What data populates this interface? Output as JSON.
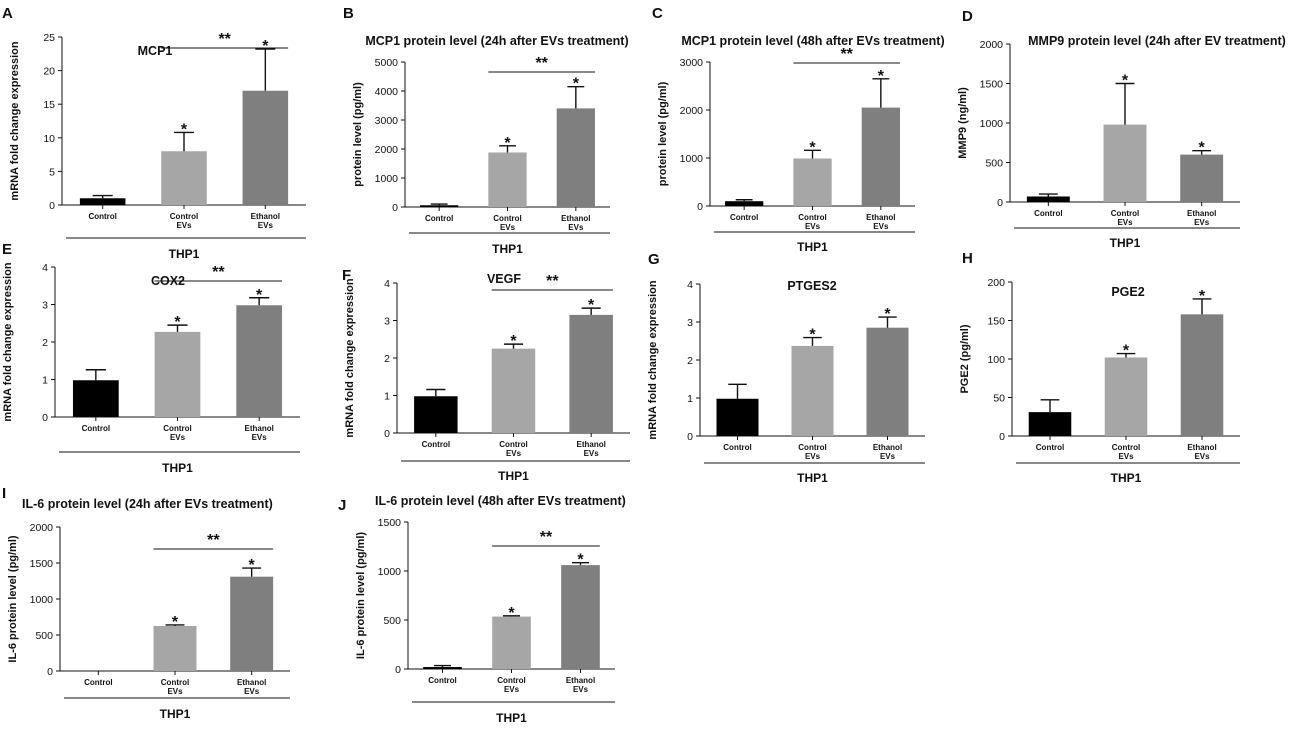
{
  "figure_title": "",
  "chart_data": [
    {
      "panel": "A",
      "type": "bar",
      "title": "MCP1",
      "ylabel": "mRNA fold change expression",
      "ylim": [
        0,
        25
      ],
      "yticks": [
        0,
        5,
        10,
        15,
        20,
        25
      ],
      "categories": [
        "Control",
        "Control EVs",
        "Ethanol EVs"
      ],
      "values": [
        1.0,
        8.0,
        17.0
      ],
      "errors": [
        0.4,
        2.8,
        6.2
      ],
      "stars": [
        "",
        "*",
        "*"
      ],
      "bracket_label": "**",
      "group_label": "THP1",
      "colors": [
        "#000000",
        "#a6a6a6",
        "#7f7f7f"
      ]
    },
    {
      "panel": "B",
      "type": "bar",
      "title": "MCP1 protein level (24h after EVs treatment)",
      "ylabel": "protein level (pg/ml)",
      "ylim": [
        0,
        5000
      ],
      "yticks": [
        0,
        1000,
        2000,
        3000,
        4000,
        5000
      ],
      "categories": [
        "Control",
        "Control EVs",
        "Ethanol EVs"
      ],
      "values": [
        60,
        1880,
        3400
      ],
      "errors": [
        40,
        230,
        750
      ],
      "stars": [
        "",
        "*",
        "*"
      ],
      "bracket_label": "**",
      "group_label": "THP1",
      "colors": [
        "#000000",
        "#a6a6a6",
        "#7f7f7f"
      ]
    },
    {
      "panel": "C",
      "type": "bar",
      "title": "MCP1 protein level (48h after EVs treatment)",
      "ylabel": "protein level (pg/ml)",
      "ylim": [
        0,
        3000
      ],
      "yticks": [
        0,
        1000,
        2000,
        3000
      ],
      "categories": [
        "Control",
        "Control EVs",
        "Ethanol EVs"
      ],
      "values": [
        100,
        990,
        2050
      ],
      "errors": [
        30,
        170,
        600
      ],
      "stars": [
        "",
        "*",
        "*"
      ],
      "bracket_label": "**",
      "group_label": "THP1",
      "colors": [
        "#000000",
        "#a6a6a6",
        "#7f7f7f"
      ]
    },
    {
      "panel": "D",
      "type": "bar",
      "title": "MMP9 protein level (24h after EV treatment)",
      "ylabel": "MMP9 (ng/ml)",
      "ylim": [
        0,
        2000
      ],
      "yticks": [
        0,
        500,
        1000,
        1500,
        2000
      ],
      "categories": [
        "Control",
        "Control EVs",
        "Ethanol EVs"
      ],
      "values": [
        70,
        980,
        600
      ],
      "errors": [
        30,
        520,
        50
      ],
      "stars": [
        "",
        "*",
        "*"
      ],
      "bracket_label": "",
      "group_label": "THP1",
      "colors": [
        "#000000",
        "#a6a6a6",
        "#7f7f7f"
      ]
    },
    {
      "panel": "E",
      "type": "bar",
      "title": "COX2",
      "ylabel": "mRNA fold change expression",
      "ylim": [
        0,
        4
      ],
      "yticks": [
        0,
        1,
        2,
        3,
        4
      ],
      "categories": [
        "Control",
        "Control EVs",
        "Ethanol EVs"
      ],
      "values": [
        0.98,
        2.27,
        2.98
      ],
      "errors": [
        0.28,
        0.18,
        0.2
      ],
      "stars": [
        "",
        "*",
        "*"
      ],
      "bracket_label": "**",
      "group_label": "THP1",
      "colors": [
        "#000000",
        "#a6a6a6",
        "#7f7f7f"
      ]
    },
    {
      "panel": "F",
      "type": "bar",
      "title": "VEGF",
      "ylabel": "mRNA fold change expression",
      "ylim": [
        0,
        4
      ],
      "yticks": [
        0,
        1,
        2,
        3,
        4
      ],
      "categories": [
        "Control",
        "Control EVs",
        "Ethanol EVs"
      ],
      "values": [
        0.98,
        2.25,
        3.15
      ],
      "errors": [
        0.18,
        0.12,
        0.18
      ],
      "stars": [
        "",
        "*",
        "*"
      ],
      "bracket_label": "**",
      "group_label": "THP1",
      "colors": [
        "#000000",
        "#a6a6a6",
        "#7f7f7f"
      ]
    },
    {
      "panel": "G",
      "type": "bar",
      "title": "PTGES2",
      "ylabel": "mRNA fold change expression",
      "ylim": [
        0,
        4
      ],
      "yticks": [
        0,
        1,
        2,
        3,
        4
      ],
      "categories": [
        "Control",
        "Control EVs",
        "Ethanol EVs"
      ],
      "values": [
        0.98,
        2.37,
        2.85
      ],
      "errors": [
        0.38,
        0.22,
        0.28
      ],
      "stars": [
        "",
        "*",
        "*"
      ],
      "bracket_label": "",
      "group_label": "THP1",
      "colors": [
        "#000000",
        "#a6a6a6",
        "#7f7f7f"
      ]
    },
    {
      "panel": "H",
      "type": "bar",
      "title": "PGE2",
      "ylabel": "PGE2 (pg/ml)",
      "ylim": [
        0,
        200
      ],
      "yticks": [
        0,
        50,
        100,
        150,
        200
      ],
      "categories": [
        "Control",
        "Control EVs",
        "Ethanol EVs"
      ],
      "values": [
        31,
        102,
        158
      ],
      "errors": [
        16,
        5,
        20
      ],
      "stars": [
        "",
        "*",
        "*"
      ],
      "bracket_label": "",
      "group_label": "THP1",
      "colors": [
        "#000000",
        "#a6a6a6",
        "#7f7f7f"
      ]
    },
    {
      "panel": "I",
      "type": "bar",
      "title": "IL-6 protein level (24h after EVs treatment)",
      "ylabel": "IL-6 protein level (pg/ml)",
      "ylim": [
        0,
        2000
      ],
      "yticks": [
        0,
        500,
        1000,
        1500,
        2000
      ],
      "categories": [
        "Control",
        "Control EVs",
        "Ethanol EVs"
      ],
      "values": [
        0,
        625,
        1310
      ],
      "errors": [
        0,
        15,
        120
      ],
      "stars": [
        "",
        "*",
        "*"
      ],
      "bracket_label": "**",
      "group_label": "THP1",
      "colors": [
        "#000000",
        "#a6a6a6",
        "#7f7f7f"
      ]
    },
    {
      "panel": "J",
      "type": "bar",
      "title": "IL-6 protein level (48h after EVs treatment)",
      "ylabel": "IL-6 protein level (pg/ml)",
      "ylim": [
        0,
        1500
      ],
      "yticks": [
        0,
        500,
        1000,
        1500
      ],
      "categories": [
        "Control",
        "Control EVs",
        "Ethanol EVs"
      ],
      "values": [
        20,
        535,
        1060
      ],
      "errors": [
        15,
        8,
        25
      ],
      "stars": [
        "",
        "*",
        "*"
      ],
      "bracket_label": "**",
      "group_label": "THP1",
      "colors": [
        "#000000",
        "#a6a6a6",
        "#7f7f7f"
      ]
    }
  ]
}
